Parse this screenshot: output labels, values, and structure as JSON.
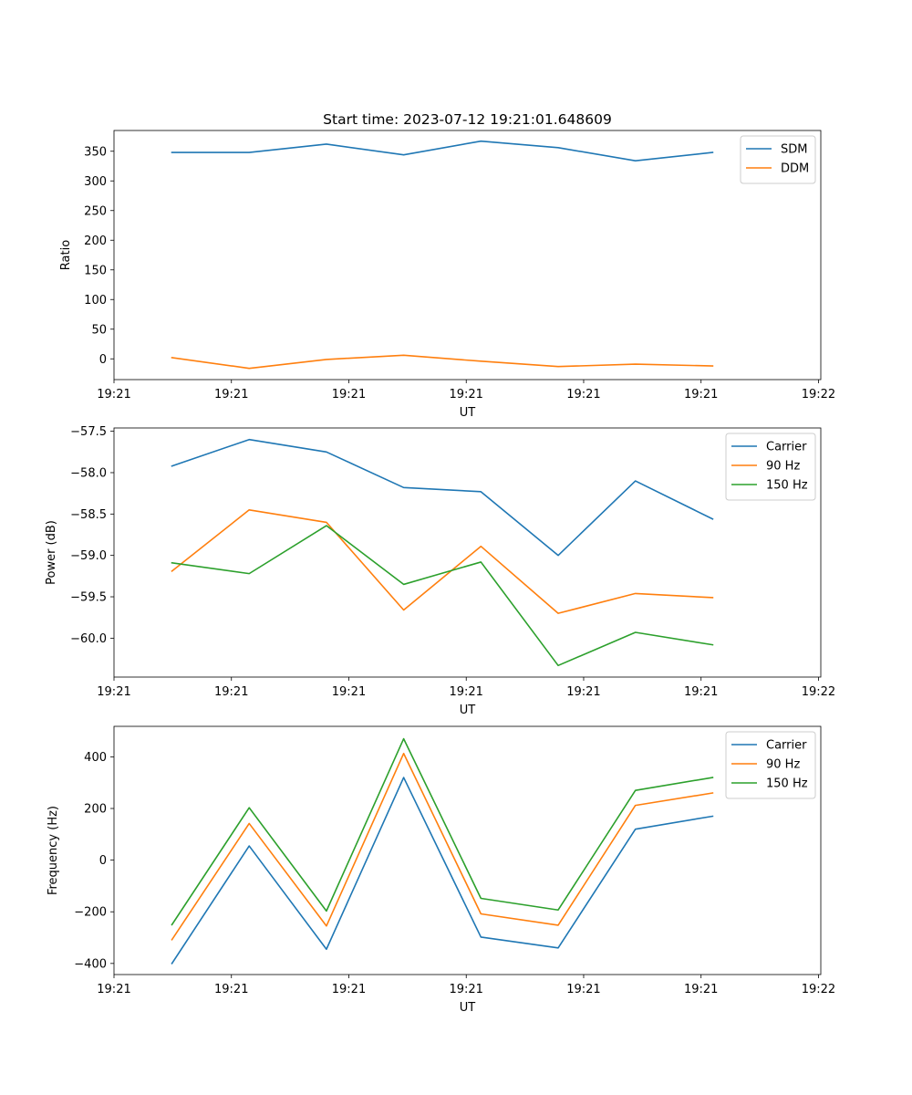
{
  "chart_data": [
    {
      "type": "line",
      "title": "Start time: 2023-07-12 19:21:01.648609",
      "xlabel": "UT",
      "ylabel": "Ratio",
      "x": [
        0,
        1,
        2,
        3,
        4,
        5,
        6,
        7
      ],
      "xlim": [
        -0.75,
        8.4
      ],
      "xticks": [
        {
          "pos": -0.75,
          "label": "19:21"
        },
        {
          "pos": 0.77,
          "label": "19:21"
        },
        {
          "pos": 2.29,
          "label": "19:21"
        },
        {
          "pos": 3.81,
          "label": "19:21"
        },
        {
          "pos": 5.33,
          "label": "19:21"
        },
        {
          "pos": 6.85,
          "label": "19:21"
        },
        {
          "pos": 8.37,
          "label": "19:22"
        }
      ],
      "ylim": [
        -35,
        385
      ],
      "yticks": [
        0,
        50,
        100,
        150,
        200,
        250,
        300,
        350
      ],
      "ytick_labels": [
        "0",
        "50",
        "100",
        "150",
        "200",
        "250",
        "300",
        "350"
      ],
      "legend": "top-right",
      "series": [
        {
          "name": "SDM",
          "color": "#1f77b4",
          "values": [
            348,
            348,
            362,
            344,
            367,
            356,
            334,
            348
          ]
        },
        {
          "name": "DDM",
          "color": "#ff7f0e",
          "values": [
            2,
            -16,
            -1,
            6,
            -4,
            -13,
            -9,
            -12
          ]
        }
      ]
    },
    {
      "type": "line",
      "title": "",
      "xlabel": "UT",
      "ylabel": "Power (dB)",
      "x": [
        0,
        1,
        2,
        3,
        4,
        5,
        6,
        7
      ],
      "xlim": [
        -0.75,
        8.4
      ],
      "xticks": [
        {
          "pos": -0.75,
          "label": "19:21"
        },
        {
          "pos": 0.77,
          "label": "19:21"
        },
        {
          "pos": 2.29,
          "label": "19:21"
        },
        {
          "pos": 3.81,
          "label": "19:21"
        },
        {
          "pos": 5.33,
          "label": "19:21"
        },
        {
          "pos": 6.85,
          "label": "19:21"
        },
        {
          "pos": 8.37,
          "label": "19:22"
        }
      ],
      "ylim": [
        -60.47,
        -57.46
      ],
      "yticks": [
        -60.0,
        -59.5,
        -59.0,
        -58.5,
        -58.0,
        -57.5
      ],
      "ytick_labels": [
        "−60.0",
        "−59.5",
        "−59.0",
        "−58.5",
        "−58.0",
        "−57.5"
      ],
      "legend": "top-right",
      "series": [
        {
          "name": "Carrier",
          "color": "#1f77b4",
          "values": [
            -57.92,
            -57.6,
            -57.75,
            -58.18,
            -58.23,
            -59.0,
            -58.1,
            -58.56
          ]
        },
        {
          "name": "90 Hz",
          "color": "#ff7f0e",
          "values": [
            -59.19,
            -58.45,
            -58.6,
            -59.66,
            -58.89,
            -59.7,
            -59.46,
            -59.51
          ]
        },
        {
          "name": "150 Hz",
          "color": "#2ca02c",
          "values": [
            -59.09,
            -59.22,
            -58.64,
            -59.35,
            -59.08,
            -60.33,
            -59.93,
            -60.08
          ]
        }
      ]
    },
    {
      "type": "line",
      "title": "",
      "xlabel": "UT",
      "ylabel": "Frequency (Hz)",
      "x": [
        0,
        1,
        2,
        3,
        4,
        5,
        6,
        7
      ],
      "xlim": [
        -0.75,
        8.4
      ],
      "xticks": [
        {
          "pos": -0.75,
          "label": "19:21"
        },
        {
          "pos": 0.77,
          "label": "19:21"
        },
        {
          "pos": 2.29,
          "label": "19:21"
        },
        {
          "pos": 3.81,
          "label": "19:21"
        },
        {
          "pos": 5.33,
          "label": "19:21"
        },
        {
          "pos": 6.85,
          "label": "19:21"
        },
        {
          "pos": 8.37,
          "label": "19:22"
        }
      ],
      "ylim": [
        -443,
        518
      ],
      "yticks": [
        -400,
        -200,
        0,
        200,
        400
      ],
      "ytick_labels": [
        "−400",
        "−200",
        "0",
        "200",
        "400"
      ],
      "legend": "top-right",
      "series": [
        {
          "name": "Carrier",
          "color": "#1f77b4",
          "values": [
            -400,
            55,
            -345,
            320,
            -298,
            -340,
            120,
            170
          ]
        },
        {
          "name": "90 Hz",
          "color": "#ff7f0e",
          "values": [
            -308,
            142,
            -255,
            413,
            -208,
            -252,
            212,
            260
          ]
        },
        {
          "name": "150 Hz",
          "color": "#2ca02c",
          "values": [
            -250,
            203,
            -197,
            470,
            -148,
            -193,
            270,
            320
          ]
        }
      ]
    }
  ]
}
